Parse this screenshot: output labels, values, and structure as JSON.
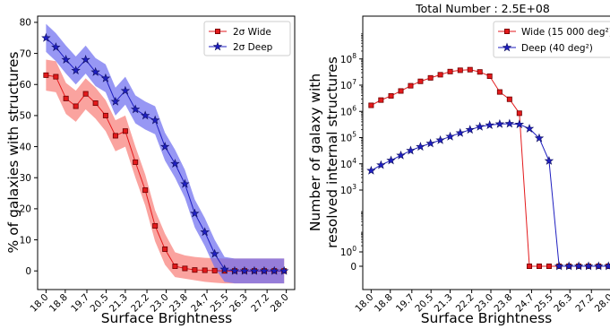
{
  "colors": {
    "wide": "#e31a1c",
    "wide_band": "#f87f7a",
    "deep": "#1f1fc0",
    "deep_band": "#6f6ff0",
    "overlap_band": "#6b3aa6"
  },
  "chart_data": [
    {
      "type": "line",
      "title": "",
      "xlabel": "Surface Brightness",
      "ylabel": "% of galaxies with structures",
      "xlim": [
        17.65,
        28.35
      ],
      "ylim": [
        -6,
        82
      ],
      "x_tick_labels": [
        "18.0",
        "18.8",
        "19.7",
        "20.5",
        "21.3",
        "22.2",
        "23.0",
        "23.8",
        "24.7",
        "25.5",
        "26.3",
        "27.2",
        "28.0"
      ],
      "y_ticks": [
        0,
        10,
        20,
        30,
        40,
        50,
        60,
        70,
        80
      ],
      "legend": {
        "position": "top-right",
        "entries": [
          "2σ Wide",
          "2σ Deep"
        ]
      },
      "x": [
        18.0,
        18.41,
        18.83,
        19.24,
        19.65,
        20.06,
        20.48,
        20.89,
        21.3,
        21.72,
        22.13,
        22.54,
        22.95,
        23.37,
        23.78,
        24.19,
        24.61,
        25.02,
        25.43,
        25.85,
        26.26,
        26.67,
        27.08,
        27.5,
        27.91
      ],
      "series": [
        {
          "name": "2σ Wide",
          "marker": "square",
          "values": [
            63,
            62.5,
            55.5,
            53,
            57,
            54,
            50,
            43.5,
            45,
            35,
            26,
            14.5,
            7,
            1.5,
            0.8,
            0.3,
            0.2,
            0.1,
            0,
            0,
            0,
            0,
            0,
            0,
            0
          ],
          "band_upper": [
            68,
            67.5,
            60.5,
            58,
            62,
            59,
            55,
            48.5,
            50,
            40,
            31,
            19.5,
            12,
            6,
            5,
            4.5,
            4.2,
            4.1,
            4,
            4,
            4,
            4,
            4,
            4,
            4
          ],
          "band_lower": [
            58,
            57.5,
            50.5,
            48,
            52,
            49,
            45,
            38.5,
            40,
            30,
            21,
            9.5,
            2,
            -2,
            -2.5,
            -3,
            -3.5,
            -3.8,
            -4,
            -4,
            -4,
            -4,
            -4,
            -4,
            -4
          ]
        },
        {
          "name": "2σ Deep",
          "marker": "star",
          "values": [
            75,
            72,
            68,
            64.5,
            68,
            64,
            62,
            54.5,
            58,
            52,
            50,
            48.5,
            40,
            34.5,
            28,
            18.5,
            12.5,
            5.5,
            0.5,
            0,
            0,
            0,
            0,
            0,
            0
          ],
          "band_upper": [
            79.5,
            76.5,
            72.5,
            69,
            72.5,
            68.5,
            66.5,
            59,
            62.5,
            56.5,
            54.5,
            53,
            44.5,
            39,
            32.5,
            23,
            17,
            10,
            4.5,
            4,
            4,
            4,
            4,
            4,
            4
          ],
          "band_lower": [
            70.5,
            67.5,
            63.5,
            60,
            63.5,
            59.5,
            57.5,
            50,
            53.5,
            47.5,
            45.5,
            44,
            35.5,
            30,
            23.5,
            14,
            8,
            1,
            -3.5,
            -4,
            -4,
            -4,
            -4,
            -4,
            -4
          ]
        }
      ]
    },
    {
      "type": "line",
      "title": "Total Number : 2.5E+08",
      "xlabel": "Surface Brightness",
      "ylabel_line1": "Number of galaxy with",
      "ylabel_line2": "resolved internal structures",
      "y_scale": "symlog",
      "xlim": [
        17.65,
        28.35
      ],
      "x_tick_labels": [
        "18.0",
        "18.8",
        "19.7",
        "20.5",
        "21.3",
        "22.2",
        "23.0",
        "23.8",
        "24.7",
        "25.5",
        "26.3",
        "27.2",
        "28.0"
      ],
      "y_tick_labels": [
        {
          "base": "0",
          "exp": ""
        },
        {
          "base": "10",
          "exp": "0"
        },
        {
          "base": "10",
          "exp": "3"
        },
        {
          "base": "10",
          "exp": "4"
        },
        {
          "base": "10",
          "exp": "5"
        },
        {
          "base": "10",
          "exp": "6"
        },
        {
          "base": "10",
          "exp": "7"
        },
        {
          "base": "10",
          "exp": "8"
        }
      ],
      "legend": {
        "position": "top-right",
        "entries": [
          "Wide (15 000 deg²)",
          "Deep (40 deg²)"
        ]
      },
      "x": [
        18.0,
        18.41,
        18.83,
        19.24,
        19.65,
        20.06,
        20.48,
        20.89,
        21.3,
        21.72,
        22.13,
        22.54,
        22.95,
        23.37,
        23.78,
        24.19,
        24.61,
        25.02,
        25.43,
        25.85,
        26.26,
        26.67,
        27.08,
        27.5,
        27.91
      ],
      "series": [
        {
          "name": "Wide (15 000 deg²)",
          "marker": "square",
          "values": [
            1700000,
            2700000,
            3900000,
            6000000,
            9500000,
            14000000,
            19000000,
            25000000,
            33000000,
            37000000,
            39000000,
            32000000,
            22000000,
            5500000,
            2900000,
            850000,
            0,
            0,
            0,
            0,
            0,
            0,
            0,
            0,
            0
          ]
        },
        {
          "name": "Deep (40 deg²)",
          "marker": "star",
          "values": [
            5500,
            9000,
            13500,
            21000,
            32000,
            45000,
            60000,
            80000,
            110000,
            150000,
            200000,
            260000,
            300000,
            330000,
            340000,
            320000,
            220000,
            95000,
            13000,
            0,
            0,
            0,
            0,
            0,
            0
          ]
        }
      ]
    }
  ]
}
